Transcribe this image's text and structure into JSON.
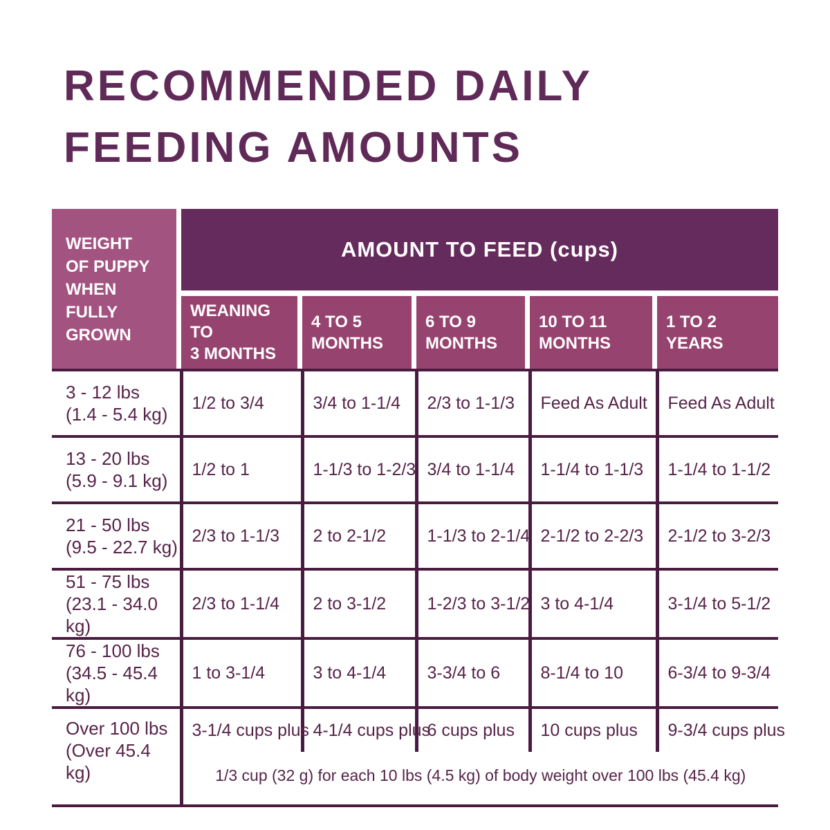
{
  "title": {
    "text": "RECOMMENDED DAILY\nFEEDING AMOUNTS"
  },
  "chart_data": {
    "type": "table",
    "corner_header": "WEIGHT\nOF PUPPY\nWHEN\nFULLY\nGROWN",
    "group_header": "AMOUNT TO FEED (cups)",
    "columns": [
      "WEANING TO\n3 MONTHS",
      "4 TO 5\nMONTHS",
      "6 TO 9\nMONTHS",
      "10 TO 11\nMONTHS",
      "1 TO 2\nYEARS"
    ],
    "rows": [
      {
        "weight": "3 - 12 lbs\n(1.4 - 5.4 kg)",
        "values": [
          "1/2 to 3/4",
          "3/4 to 1-1/4",
          "2/3 to 1-1/3",
          "Feed As Adult",
          "Feed As Adult"
        ]
      },
      {
        "weight": "13 - 20 lbs\n(5.9 - 9.1 kg)",
        "values": [
          "1/2 to 1",
          "1-1/3 to 1-2/3",
          "3/4 to 1-1/4",
          "1-1/4 to 1-1/3",
          "1-1/4 to 1-1/2"
        ]
      },
      {
        "weight": "21 - 50 lbs\n(9.5 - 22.7 kg)",
        "values": [
          "2/3 to 1-1/3",
          "2 to 2-1/2",
          "1-1/3 to 2-1/4",
          "2-1/2 to 2-2/3",
          "2-1/2 to 3-2/3"
        ]
      },
      {
        "weight": "51 - 75 lbs\n(23.1 - 34.0 kg)",
        "values": [
          "2/3 to 1-1/4",
          "2 to 3-1/2",
          "1-2/3 to 3-1/2",
          "3 to 4-1/4",
          "3-1/4 to 5-1/2"
        ]
      },
      {
        "weight": "76 - 100 lbs\n(34.5 - 45.4 kg)",
        "values": [
          "1 to 3-1/4",
          "3 to 4-1/4",
          "3-3/4 to 6",
          "8-1/4 to 10",
          "6-3/4 to 9-3/4"
        ]
      },
      {
        "weight": "Over 100 lbs\n(Over 45.4 kg)",
        "values": [
          "3-1/4 cups plus",
          "4-1/4 cups plus",
          "6 cups plus",
          "10 cups plus",
          "9-3/4 cups plus"
        ]
      }
    ],
    "footnote": "1/3 cup (32 g) for each 10 lbs (4.5 kg) of body weight over 100 lbs (45.4 kg)"
  },
  "colors": {
    "background": "#ffffff",
    "title_text": "#602a58",
    "header_band": "#652b5c",
    "header_corner": "#a35380",
    "header_columns": "#97436f",
    "table_border": "#4a1b40",
    "body_text": "#572349"
  }
}
